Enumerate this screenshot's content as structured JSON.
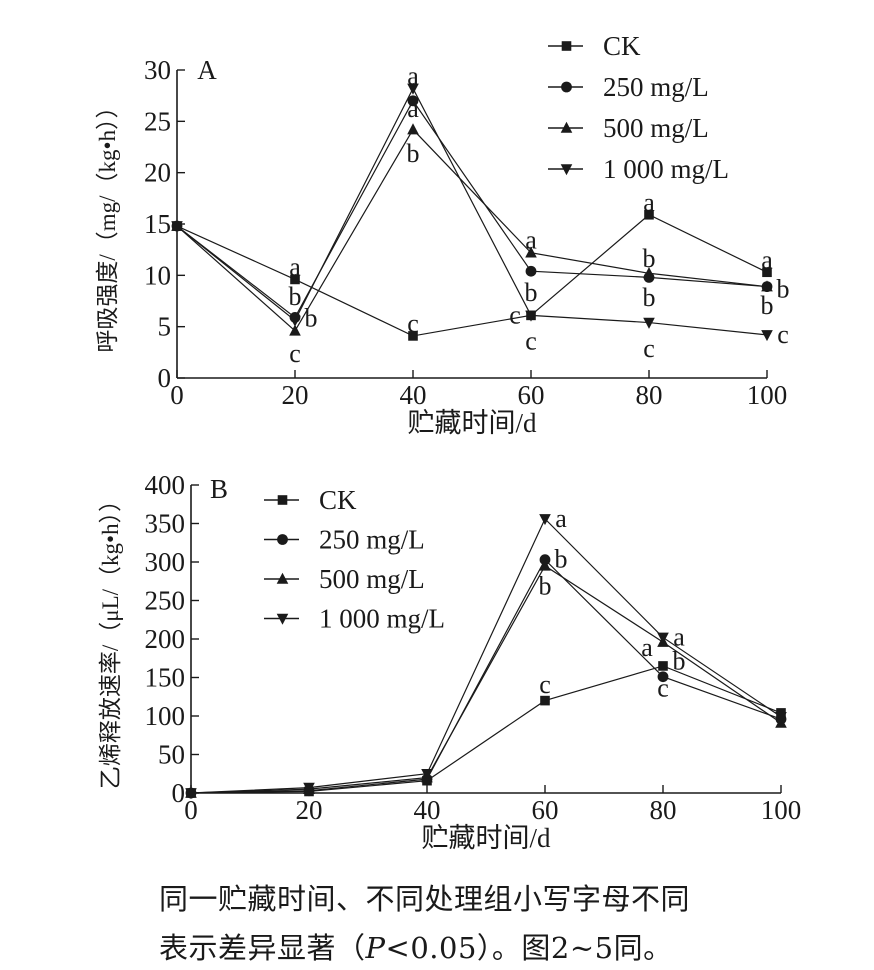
{
  "chart_data": [
    {
      "type": "line",
      "panel_label": "A",
      "xlabel": "贮藏时间/d",
      "ylabel": "呼吸强度/（mg/（kg•h））",
      "xlim": [
        0,
        100
      ],
      "ylim": [
        0,
        30
      ],
      "xticks": [
        0,
        20,
        40,
        60,
        80,
        100
      ],
      "yticks": [
        0,
        5,
        10,
        15,
        20,
        25,
        30
      ],
      "x": [
        0,
        20,
        40,
        60,
        80,
        100
      ],
      "grid": false,
      "legend": "top-right",
      "series": [
        {
          "name": "CK",
          "marker": "square",
          "values": [
            14.8,
            9.6,
            4.1,
            6.1,
            15.9,
            10.3
          ]
        },
        {
          "name": "250 mg/L",
          "marker": "circle",
          "values": [
            14.8,
            5.9,
            27.0,
            10.4,
            9.8,
            8.9
          ]
        },
        {
          "name": "500 mg/L",
          "marker": "triangle-up",
          "values": [
            14.8,
            4.6,
            24.2,
            12.2,
            10.2,
            8.9
          ]
        },
        {
          "name": "1 000 mg/L",
          "marker": "triangle-down",
          "values": [
            14.8,
            5.6,
            28.2,
            6.1,
            5.4,
            4.2
          ]
        }
      ],
      "annotations": [
        {
          "text": "a",
          "x": 20,
          "y": 9.6,
          "anchor": "above"
        },
        {
          "text": "b",
          "x": 20,
          "y": 7.9,
          "anchor": "center"
        },
        {
          "text": "b",
          "x": 20,
          "y": 5.8,
          "anchor": "right"
        },
        {
          "text": "c",
          "x": 20,
          "y": 3.5,
          "anchor": "below"
        },
        {
          "text": "a",
          "x": 40,
          "y": 28.2,
          "anchor": "above"
        },
        {
          "text": "a",
          "x": 40,
          "y": 26.2,
          "anchor": "center"
        },
        {
          "text": "b",
          "x": 40,
          "y": 23.0,
          "anchor": "below"
        },
        {
          "text": "c",
          "x": 40,
          "y": 4.1,
          "anchor": "above"
        },
        {
          "text": "a",
          "x": 60,
          "y": 12.2,
          "anchor": "above"
        },
        {
          "text": "b",
          "x": 60,
          "y": 8.3,
          "anchor": "center"
        },
        {
          "text": "c",
          "x": 60,
          "y": 6.1,
          "anchor": "left"
        },
        {
          "text": "c",
          "x": 60,
          "y": 4.7,
          "anchor": "below"
        },
        {
          "text": "a",
          "x": 80,
          "y": 15.9,
          "anchor": "above"
        },
        {
          "text": "b",
          "x": 80,
          "y": 11.6,
          "anchor": "center"
        },
        {
          "text": "b",
          "x": 80,
          "y": 7.8,
          "anchor": "center"
        },
        {
          "text": "c",
          "x": 80,
          "y": 4.0,
          "anchor": "below"
        },
        {
          "text": "a",
          "x": 100,
          "y": 10.3,
          "anchor": "above"
        },
        {
          "text": "b",
          "x": 100,
          "y": 8.6,
          "anchor": "right"
        },
        {
          "text": "b",
          "x": 100,
          "y": 7.0,
          "anchor": "center"
        },
        {
          "text": "c",
          "x": 100,
          "y": 4.2,
          "anchor": "right"
        }
      ]
    },
    {
      "type": "line",
      "panel_label": "B",
      "xlabel": "贮藏时间/d",
      "ylabel": "乙烯释放速率/（μL/（kg•h））",
      "xlim": [
        0,
        100
      ],
      "ylim": [
        0,
        400
      ],
      "xticks": [
        0,
        20,
        40,
        60,
        80,
        100
      ],
      "yticks": [
        0,
        50,
        100,
        150,
        200,
        250,
        300,
        350,
        400
      ],
      "x": [
        0,
        20,
        40,
        60,
        80,
        100
      ],
      "grid": false,
      "legend": "top-left",
      "series": [
        {
          "name": "CK",
          "marker": "square",
          "values": [
            0,
            2,
            16,
            120,
            165,
            104
          ]
        },
        {
          "name": "250 mg/L",
          "marker": "circle",
          "values": [
            0,
            3,
            18,
            303,
            151,
            96
          ]
        },
        {
          "name": "500 mg/L",
          "marker": "triangle-up",
          "values": [
            0,
            5,
            20,
            295,
            196,
            91
          ]
        },
        {
          "name": "1 000 mg/L",
          "marker": "triangle-down",
          "values": [
            0,
            7,
            25,
            356,
            202,
            99
          ]
        }
      ],
      "annotations": [
        {
          "text": "a",
          "x": 60,
          "y": 356,
          "anchor": "right"
        },
        {
          "text": "b",
          "x": 60,
          "y": 303,
          "anchor": "right"
        },
        {
          "text": "b",
          "x": 60,
          "y": 268,
          "anchor": "center"
        },
        {
          "text": "c",
          "x": 60,
          "y": 140,
          "anchor": "center"
        },
        {
          "text": "a",
          "x": 80,
          "y": 202,
          "anchor": "right"
        },
        {
          "text": "a",
          "x": 80,
          "y": 188,
          "anchor": "left"
        },
        {
          "text": "b",
          "x": 80,
          "y": 171,
          "anchor": "right"
        },
        {
          "text": "c",
          "x": 80,
          "y": 136,
          "anchor": "center"
        }
      ]
    }
  ],
  "caption": {
    "line1": "同一贮藏时间、不同处理组小写字母不同",
    "line2_before": "表示差异显著（",
    "line2_italic": "P",
    "line2_after": "<0.05）。图2~5同。"
  }
}
